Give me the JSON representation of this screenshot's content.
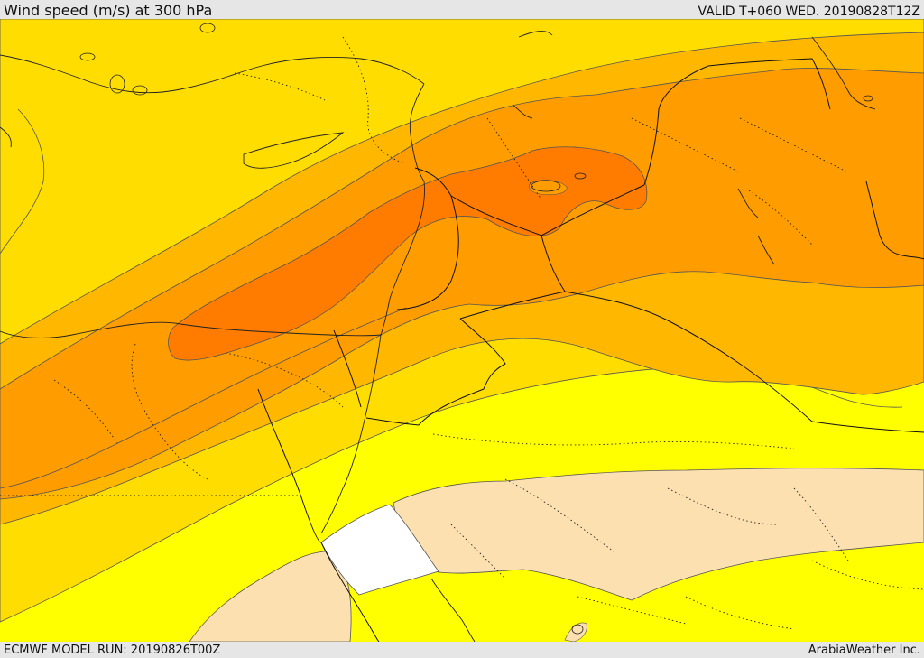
{
  "header": {
    "title": "Wind speed (m/s) at 300 hPa",
    "valid": "VALID T+060 WED. 20190828T12Z"
  },
  "footer": {
    "model_run": "ECMWF MODEL RUN: 20190826T00Z",
    "provider": "ArabiaWeather Inc."
  },
  "map": {
    "field": "wind speed at 300 hPa",
    "palette": {
      "very_low": "#ffffff",
      "low": "#fde0b0",
      "band_1": "#ffff00",
      "band_2": "#ffdd00",
      "band_3": "#ffb700",
      "band_4": "#ff9c00",
      "band_5": "#ff7c00",
      "contour_line": "#555555",
      "border_line": "#000000"
    }
  }
}
